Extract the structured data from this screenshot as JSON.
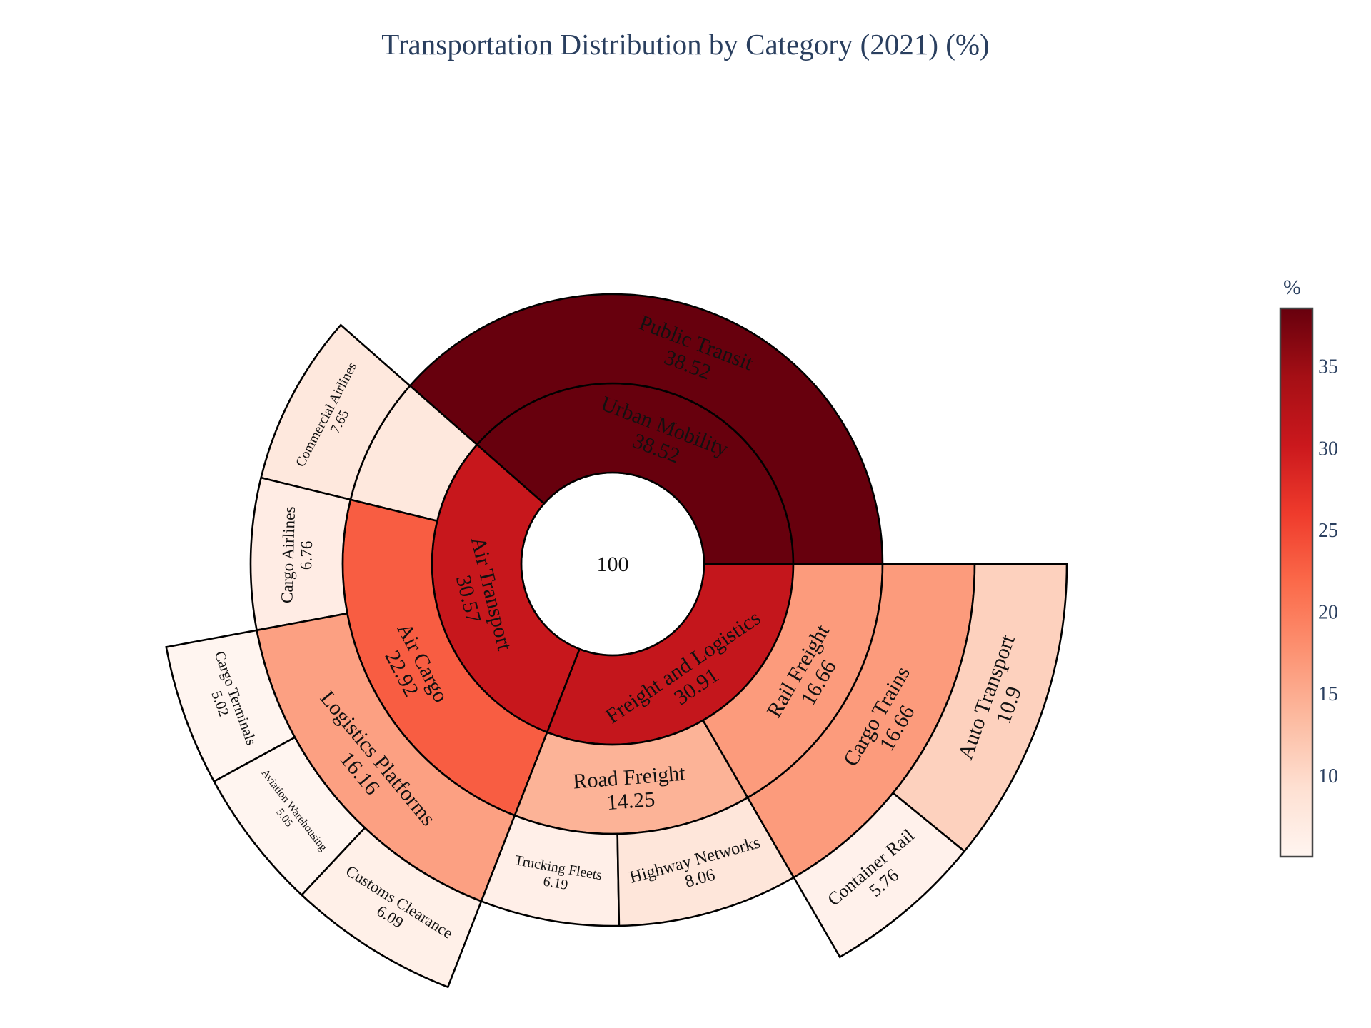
{
  "chart_data": {
    "type": "sunburst",
    "title": "Transportation Distribution by Category (2021) (%)",
    "root": {
      "label": "",
      "value": 100
    },
    "nodes": [
      {
        "id": "urban",
        "label": "Urban Mobility",
        "value": 38.52,
        "parent": "root",
        "level": 1
      },
      {
        "id": "air",
        "label": "Air Transport",
        "value": 30.57,
        "parent": "root",
        "level": 1
      },
      {
        "id": "freight",
        "label": "Freight and Logistics",
        "value": 30.91,
        "parent": "root",
        "level": 1
      },
      {
        "id": "public",
        "label": "Public Transit",
        "value": 38.52,
        "parent": "urban",
        "level": 2
      },
      {
        "id": "airops",
        "label": "",
        "value": 7.65,
        "parent": "air",
        "level": 2
      },
      {
        "id": "aircargo",
        "label": "Air Cargo",
        "value": 22.92,
        "parent": "air",
        "level": 2
      },
      {
        "id": "road",
        "label": "Road Freight",
        "value": 14.25,
        "parent": "freight",
        "level": 2
      },
      {
        "id": "rail",
        "label": "Rail Freight",
        "value": 16.66,
        "parent": "freight",
        "level": 2
      },
      {
        "id": "commercial",
        "label": "Commercial Airlines",
        "value": 7.65,
        "parent": "airops",
        "level": 3
      },
      {
        "id": "cargoair",
        "label": "Cargo Airlines",
        "value": 6.76,
        "parent": "aircargo",
        "level": 3
      },
      {
        "id": "logplat",
        "label": "Logistics Platforms",
        "value": 16.16,
        "parent": "aircargo",
        "level": 3
      },
      {
        "id": "trucking",
        "label": "Trucking Fleets",
        "value": 6.19,
        "parent": "road",
        "level": 3
      },
      {
        "id": "highway",
        "label": "Highway Networks",
        "value": 8.06,
        "parent": "road",
        "level": 3
      },
      {
        "id": "cargotrains",
        "label": "Cargo Trains",
        "value": 16.66,
        "parent": "rail",
        "level": 3
      },
      {
        "id": "cargoterm",
        "label": "Cargo Terminals",
        "value": 5.02,
        "parent": "logplat",
        "level": 4
      },
      {
        "id": "aviationwh",
        "label": "Aviation Warehousing",
        "value": 5.05,
        "parent": "logplat",
        "level": 4
      },
      {
        "id": "customs",
        "label": "Customs Clearance",
        "value": 6.09,
        "parent": "logplat",
        "level": 4
      },
      {
        "id": "containerrail",
        "label": "Container Rail",
        "value": 5.76,
        "parent": "cargotrains",
        "level": 4
      },
      {
        "id": "autotransport",
        "label": "Auto Transport",
        "value": 10.9,
        "parent": "cargotrains",
        "level": 4
      }
    ],
    "colorscale": "Reds",
    "color_range": [
      5.02,
      38.52
    ],
    "colorbar": {
      "title": "%",
      "ticks": [
        10,
        15,
        20,
        25,
        30,
        35
      ],
      "placement": "right"
    }
  }
}
